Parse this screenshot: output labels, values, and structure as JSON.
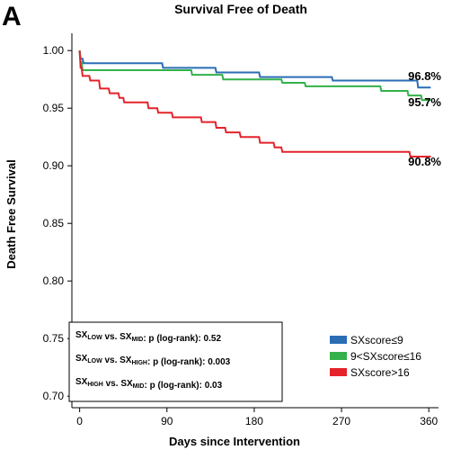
{
  "panel_letter": "A",
  "chart_data": {
    "type": "line",
    "subtype": "kaplan-meier-step",
    "title": "Survival Free of Death",
    "xlabel": "Days since Intervention",
    "ylabel": "Death Free Survival",
    "xlim": [
      -8,
      370
    ],
    "ylim": [
      0.69,
      1.015
    ],
    "xticks": [
      0,
      90,
      180,
      270,
      360
    ],
    "yticks": [
      0.7,
      0.75,
      0.8,
      0.85,
      0.9,
      0.95,
      1.0
    ],
    "ytick_labels": [
      "0.70",
      "0.75",
      "0.80",
      "0.85",
      "0.90",
      "0.95",
      "1.00"
    ],
    "grid": false,
    "legend_position": "bottom-right",
    "series": [
      {
        "name": "SXscore≤9",
        "color": "#2a6db5",
        "end_label": "96.8%",
        "points": [
          [
            0,
            1.0
          ],
          [
            1,
            0.993
          ],
          [
            3,
            0.993
          ],
          [
            4,
            0.989
          ],
          [
            85,
            0.989
          ],
          [
            86,
            0.985
          ],
          [
            140,
            0.985
          ],
          [
            141,
            0.981
          ],
          [
            185,
            0.981
          ],
          [
            186,
            0.977
          ],
          [
            260,
            0.977
          ],
          [
            261,
            0.974
          ],
          [
            348,
            0.974
          ],
          [
            349,
            0.968
          ],
          [
            362,
            0.968
          ]
        ]
      },
      {
        "name": "9<SXscore≤16",
        "color": "#33b14a",
        "end_label": "95.7%",
        "points": [
          [
            0,
            1.0
          ],
          [
            1,
            0.99
          ],
          [
            2,
            0.99
          ],
          [
            3,
            0.983
          ],
          [
            115,
            0.983
          ],
          [
            116,
            0.979
          ],
          [
            147,
            0.979
          ],
          [
            148,
            0.975
          ],
          [
            208,
            0.975
          ],
          [
            209,
            0.972
          ],
          [
            232,
            0.972
          ],
          [
            233,
            0.969
          ],
          [
            310,
            0.969
          ],
          [
            311,
            0.965
          ],
          [
            338,
            0.965
          ],
          [
            339,
            0.961
          ],
          [
            352,
            0.961
          ],
          [
            353,
            0.957
          ],
          [
            362,
            0.957
          ]
        ]
      },
      {
        "name": "SXscore>16",
        "color": "#e4232a",
        "end_label": "90.8%",
        "points": [
          [
            0,
            1.0
          ],
          [
            1,
            0.985
          ],
          [
            2,
            0.985
          ],
          [
            3,
            0.978
          ],
          [
            10,
            0.978
          ],
          [
            11,
            0.974
          ],
          [
            20,
            0.974
          ],
          [
            21,
            0.967
          ],
          [
            30,
            0.967
          ],
          [
            31,
            0.963
          ],
          [
            40,
            0.963
          ],
          [
            41,
            0.959
          ],
          [
            45,
            0.959
          ],
          [
            46,
            0.955
          ],
          [
            70,
            0.955
          ],
          [
            71,
            0.95
          ],
          [
            80,
            0.95
          ],
          [
            81,
            0.946
          ],
          [
            95,
            0.946
          ],
          [
            96,
            0.942
          ],
          [
            125,
            0.942
          ],
          [
            126,
            0.938
          ],
          [
            140,
            0.938
          ],
          [
            141,
            0.933
          ],
          [
            150,
            0.933
          ],
          [
            151,
            0.929
          ],
          [
            165,
            0.929
          ],
          [
            166,
            0.925
          ],
          [
            185,
            0.925
          ],
          [
            186,
            0.92
          ],
          [
            200,
            0.92
          ],
          [
            201,
            0.916
          ],
          [
            208,
            0.916
          ],
          [
            209,
            0.912
          ],
          [
            340,
            0.912
          ],
          [
            341,
            0.908
          ],
          [
            362,
            0.908
          ]
        ]
      }
    ]
  },
  "stats_box": {
    "rows": [
      {
        "a": "SX",
        "a_sub": "LOW",
        "vs": " vs. ",
        "b": "SX",
        "b_sub": "MID",
        "rest": ":  p (log-rank): 0.52"
      },
      {
        "a": "SX",
        "a_sub": "LOW",
        "vs": " vs. ",
        "b": "SX",
        "b_sub": "HIGH",
        "rest": ": p (log-rank): 0.003"
      },
      {
        "a": "SX",
        "a_sub": "HIGH",
        "vs": " vs. ",
        "b": "SX",
        "b_sub": "MID",
        "rest": ": p (log-rank): 0.03"
      }
    ]
  }
}
